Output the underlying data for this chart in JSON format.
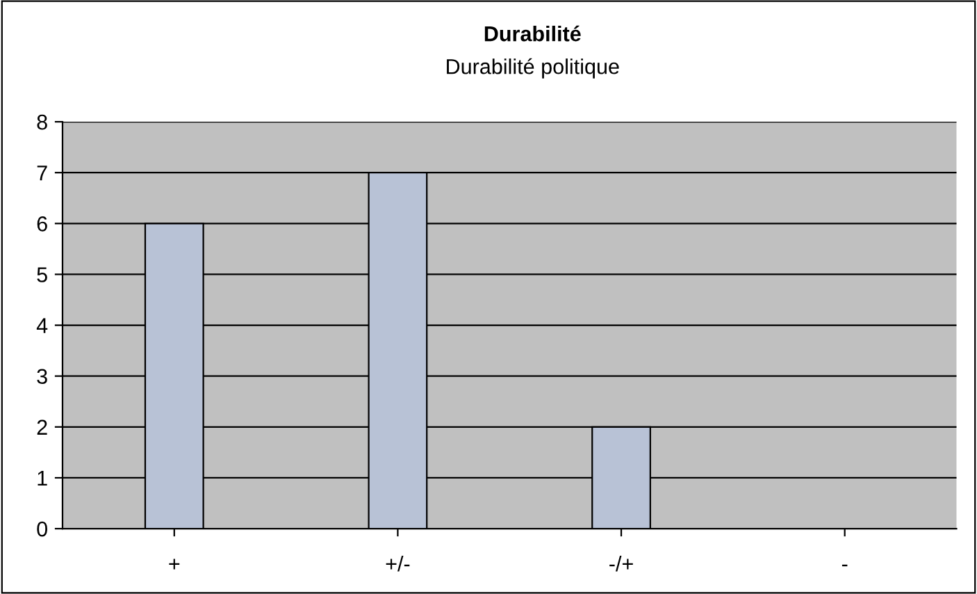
{
  "chart_data": {
    "type": "bar",
    "title": "Durabilité",
    "subtitle": "Durabilité politique",
    "categories": [
      "+",
      "+/-",
      "-/+",
      "-"
    ],
    "values": [
      6,
      7,
      2,
      0
    ],
    "color": "#b8c2d6",
    "ylim": [
      0,
      8
    ],
    "yticks": [
      0,
      1,
      2,
      3,
      4,
      5,
      6,
      7,
      8
    ],
    "grid": "y",
    "legend": false
  }
}
